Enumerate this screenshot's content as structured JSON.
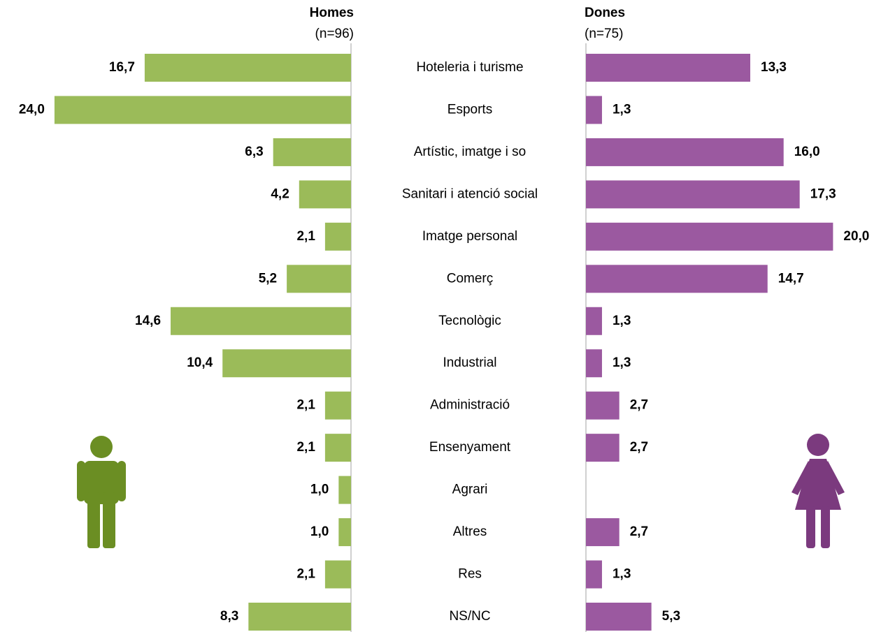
{
  "chart_data": {
    "type": "bar",
    "orientation": "butterfly",
    "categories": [
      "Hoteleria i turisme",
      "Esports",
      "Artístic, imatge i so",
      "Sanitari i atenció social",
      "Imatge personal",
      "Comerç",
      "Tecnològic",
      "Industrial",
      "Administració",
      "Ensenyament",
      "Agrari",
      "Altres",
      "Res",
      "NS/NC"
    ],
    "series": [
      {
        "name": "Homes",
        "sample": "(n=96)",
        "color": "#9bbb59",
        "values": [
          16.7,
          24.0,
          6.3,
          4.2,
          2.1,
          5.2,
          14.6,
          10.4,
          2.1,
          2.1,
          1.0,
          1.0,
          2.1,
          8.3
        ],
        "value_labels": [
          "16,7",
          "24,0",
          "6,3",
          "4,2",
          "2,1",
          "5,2",
          "14,6",
          "10,4",
          "2,1",
          "2,1",
          "1,0",
          "1,0",
          "2,1",
          "8,3"
        ]
      },
      {
        "name": "Dones",
        "sample": "(n=75)",
        "color": "#9b59a0",
        "values": [
          13.3,
          1.3,
          16.0,
          17.3,
          20.0,
          14.7,
          1.3,
          1.3,
          2.7,
          2.7,
          null,
          2.7,
          1.3,
          5.3
        ],
        "value_labels": [
          "13,3",
          "1,3",
          "16,0",
          "17,3",
          "20,0",
          "14,7",
          "1,3",
          "1,3",
          "2,7",
          "2,7",
          null,
          "2,7",
          "1,3",
          "5,3"
        ]
      }
    ]
  }
}
